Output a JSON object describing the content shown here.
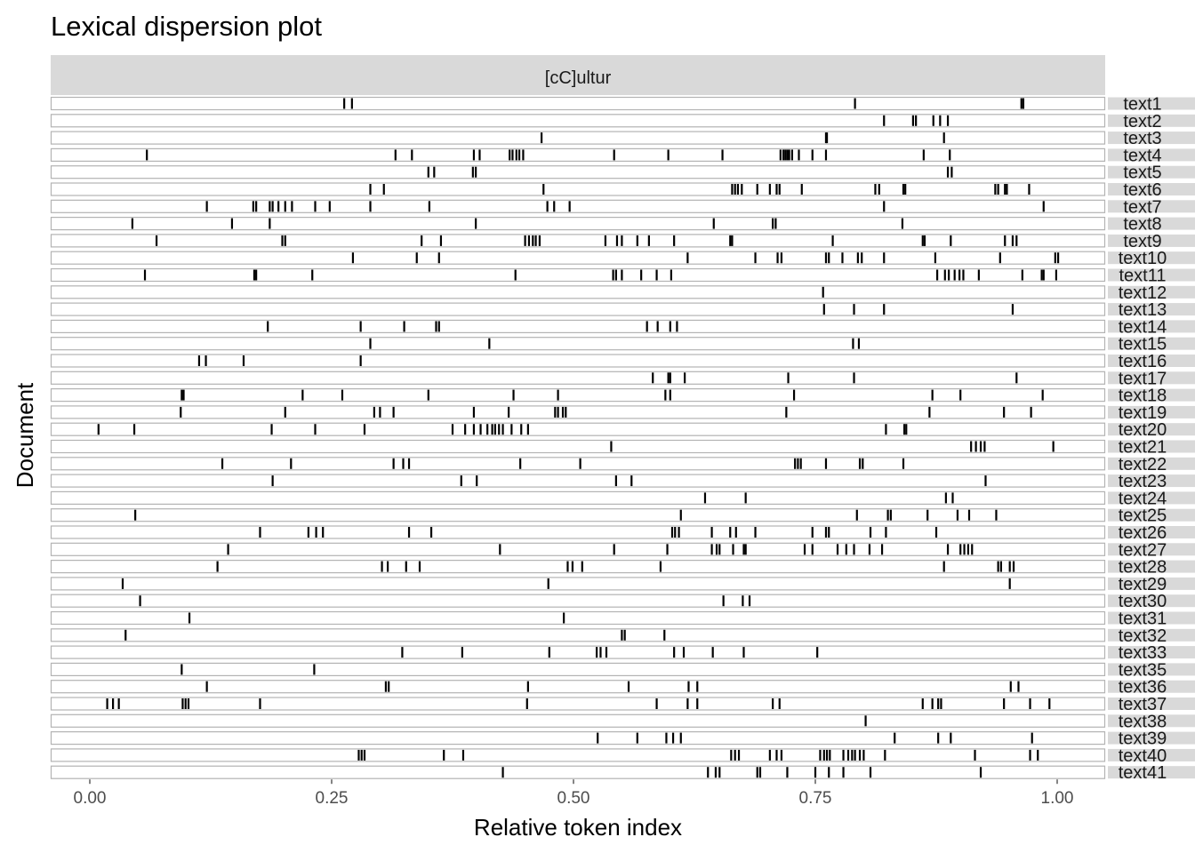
{
  "chart_data": {
    "type": "scatter",
    "title": "Lexical dispersion plot",
    "facet": "[cC]ultur",
    "xlabel": "Relative token index",
    "ylabel": "Document",
    "xlim": [
      0,
      1
    ],
    "x_ticks": [
      0,
      0.25,
      0.5,
      0.75,
      1
    ],
    "x_tick_labels": [
      "0.00",
      "0.25",
      "0.50",
      "0.75",
      "1.00"
    ],
    "grid": false,
    "colors": {
      "strip": "#d9d9d9",
      "mark": "#000000",
      "panel_border": "#b3b3b3"
    },
    "documents": [
      {
        "name": "text1",
        "positions": [
          0.263,
          0.271,
          0.791,
          0.963,
          0.965
        ]
      },
      {
        "name": "text2",
        "positions": [
          0.821,
          0.851,
          0.854,
          0.872,
          0.879,
          0.887
        ]
      },
      {
        "name": "text3",
        "positions": [
          0.467,
          0.761,
          0.762,
          0.883
        ]
      },
      {
        "name": "text4",
        "positions": [
          0.059,
          0.316,
          0.333,
          0.397,
          0.403,
          0.434,
          0.437,
          0.441,
          0.444,
          0.448,
          0.542,
          0.598,
          0.654,
          0.714,
          0.717,
          0.719,
          0.721,
          0.723,
          0.726,
          0.733,
          0.747,
          0.761,
          0.862,
          0.889
        ]
      },
      {
        "name": "text5",
        "positions": [
          0.35,
          0.356,
          0.396,
          0.399,
          0.887,
          0.891
        ]
      },
      {
        "name": "text6",
        "positions": [
          0.29,
          0.304,
          0.469,
          0.664,
          0.667,
          0.67,
          0.674,
          0.69,
          0.703,
          0.71,
          0.713,
          0.736,
          0.812,
          0.816,
          0.841,
          0.843,
          0.936,
          0.939,
          0.946,
          0.948,
          0.971
        ]
      },
      {
        "name": "text7",
        "positions": [
          0.121,
          0.169,
          0.172,
          0.186,
          0.189,
          0.195,
          0.202,
          0.209,
          0.233,
          0.248,
          0.29,
          0.351,
          0.473,
          0.48,
          0.496,
          0.821,
          0.986
        ]
      },
      {
        "name": "text8",
        "positions": [
          0.044,
          0.147,
          0.186,
          0.399,
          0.645,
          0.706,
          0.709,
          0.84
        ]
      },
      {
        "name": "text9",
        "positions": [
          0.069,
          0.199,
          0.202,
          0.343,
          0.363,
          0.45,
          0.454,
          0.458,
          0.461,
          0.465,
          0.533,
          0.545,
          0.55,
          0.566,
          0.578,
          0.604,
          0.662,
          0.664,
          0.768,
          0.861,
          0.863,
          0.89,
          0.946,
          0.954,
          0.958
        ]
      },
      {
        "name": "text10",
        "positions": [
          0.272,
          0.338,
          0.361,
          0.618,
          0.688,
          0.711,
          0.715,
          0.761,
          0.764,
          0.778,
          0.794,
          0.798,
          0.821,
          0.874,
          0.941,
          0.998,
          1.001
        ]
      },
      {
        "name": "text11",
        "positions": [
          0.057,
          0.17,
          0.172,
          0.23,
          0.44,
          0.541,
          0.544,
          0.55,
          0.57,
          0.586,
          0.601,
          0.876,
          0.884,
          0.888,
          0.894,
          0.899,
          0.903,
          0.919,
          0.964,
          0.984,
          0.986,
          0.999
        ]
      },
      {
        "name": "text12",
        "positions": [
          0.758
        ]
      },
      {
        "name": "text13",
        "positions": [
          0.759,
          0.79,
          0.821,
          0.954
        ]
      },
      {
        "name": "text14",
        "positions": [
          0.184,
          0.28,
          0.325,
          0.358,
          0.361,
          0.576,
          0.587,
          0.6,
          0.607
        ]
      },
      {
        "name": "text15",
        "positions": [
          0.29,
          0.413,
          0.789,
          0.795
        ]
      },
      {
        "name": "text16",
        "positions": [
          0.113,
          0.12,
          0.159,
          0.28
        ]
      },
      {
        "name": "text17",
        "positions": [
          0.582,
          0.598,
          0.6,
          0.615,
          0.722,
          0.79,
          0.958
        ]
      },
      {
        "name": "text18",
        "positions": [
          0.095,
          0.097,
          0.22,
          0.261,
          0.35,
          0.438,
          0.484,
          0.595,
          0.6,
          0.728,
          0.871,
          0.9,
          0.985
        ]
      },
      {
        "name": "text19",
        "positions": [
          0.094,
          0.202,
          0.294,
          0.3,
          0.314,
          0.397,
          0.433,
          0.481,
          0.484,
          0.489,
          0.492,
          0.72,
          0.868,
          0.945,
          0.973
        ]
      },
      {
        "name": "text20",
        "positions": [
          0.009,
          0.046,
          0.188,
          0.233,
          0.284,
          0.375,
          0.388,
          0.397,
          0.404,
          0.411,
          0.416,
          0.419,
          0.423,
          0.427,
          0.436,
          0.446,
          0.453,
          0.823,
          0.842,
          0.844
        ]
      },
      {
        "name": "text21",
        "positions": [
          0.539,
          0.911,
          0.916,
          0.921,
          0.925,
          0.996
        ]
      },
      {
        "name": "text22",
        "positions": [
          0.137,
          0.208,
          0.314,
          0.324,
          0.33,
          0.445,
          0.507,
          0.729,
          0.732,
          0.735,
          0.761,
          0.796,
          0.799,
          0.841
        ]
      },
      {
        "name": "text23",
        "positions": [
          0.189,
          0.384,
          0.4,
          0.544,
          0.56,
          0.926
        ]
      },
      {
        "name": "text24",
        "positions": [
          0.636,
          0.678,
          0.885,
          0.892
        ]
      },
      {
        "name": "text25",
        "positions": [
          0.047,
          0.611,
          0.793,
          0.825,
          0.828,
          0.866,
          0.897,
          0.909,
          0.937
        ]
      },
      {
        "name": "text26",
        "positions": [
          0.176,
          0.226,
          0.234,
          0.241,
          0.33,
          0.353,
          0.602,
          0.605,
          0.609,
          0.643,
          0.662,
          0.668,
          0.688,
          0.747,
          0.761,
          0.764,
          0.807,
          0.823,
          0.875
        ]
      },
      {
        "name": "text27",
        "positions": [
          0.143,
          0.424,
          0.542,
          0.597,
          0.643,
          0.648,
          0.651,
          0.665,
          0.676,
          0.678,
          0.739,
          0.747,
          0.773,
          0.782,
          0.79,
          0.806,
          0.819,
          0.887,
          0.9,
          0.904,
          0.908,
          0.912
        ]
      },
      {
        "name": "text28",
        "positions": [
          0.132,
          0.302,
          0.308,
          0.327,
          0.341,
          0.494,
          0.499,
          0.509,
          0.59,
          0.883,
          0.939,
          0.942,
          0.951,
          0.955
        ]
      },
      {
        "name": "text29",
        "positions": [
          0.034,
          0.474,
          0.951
        ]
      },
      {
        "name": "text30",
        "positions": [
          0.052,
          0.655,
          0.675,
          0.682
        ]
      },
      {
        "name": "text31",
        "positions": [
          0.103,
          0.49
        ]
      },
      {
        "name": "text32",
        "positions": [
          0.037,
          0.55,
          0.553,
          0.594
        ]
      },
      {
        "name": "text33",
        "positions": [
          0.323,
          0.385,
          0.475,
          0.524,
          0.528,
          0.534,
          0.604,
          0.614,
          0.644,
          0.676,
          0.752
        ]
      },
      {
        "name": "text35",
        "positions": [
          0.095,
          0.232
        ]
      },
      {
        "name": "text36",
        "positions": [
          0.121,
          0.306,
          0.309,
          0.453,
          0.557,
          0.619,
          0.628,
          0.952,
          0.96
        ]
      },
      {
        "name": "text37",
        "positions": [
          0.018,
          0.024,
          0.03,
          0.096,
          0.099,
          0.102,
          0.176,
          0.452,
          0.586,
          0.618,
          0.628,
          0.706,
          0.713,
          0.861,
          0.871,
          0.877,
          0.88,
          0.945,
          0.972,
          0.992
        ]
      },
      {
        "name": "text38",
        "positions": [
          0.802
        ]
      },
      {
        "name": "text39",
        "positions": [
          0.525,
          0.566,
          0.596,
          0.603,
          0.611,
          0.832,
          0.877,
          0.89,
          0.974
        ]
      },
      {
        "name": "text40",
        "positions": [
          0.278,
          0.281,
          0.284,
          0.366,
          0.386,
          0.663,
          0.667,
          0.671,
          0.703,
          0.71,
          0.715,
          0.755,
          0.759,
          0.762,
          0.765,
          0.779,
          0.784,
          0.788,
          0.791,
          0.796,
          0.8,
          0.822,
          0.915,
          0.972,
          0.98
        ]
      },
      {
        "name": "text41",
        "positions": [
          0.427,
          0.639,
          0.647,
          0.651,
          0.69,
          0.693,
          0.721,
          0.75,
          0.764,
          0.779,
          0.807,
          0.921
        ]
      }
    ]
  }
}
